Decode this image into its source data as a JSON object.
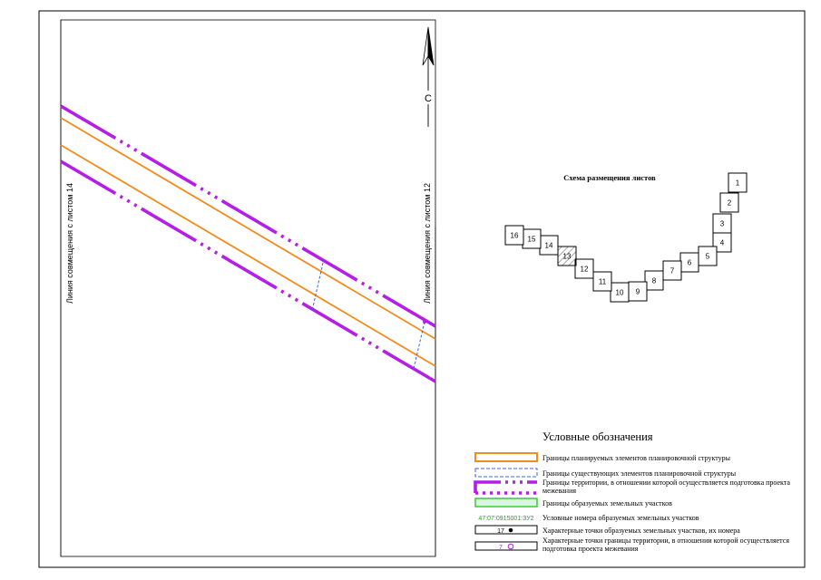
{
  "north_label": "С",
  "match_lines": {
    "left": "Линия совмещения с листом 14",
    "right": "Линия совмещения с листом 12"
  },
  "sheet_scheme": {
    "title": "Схема размещения листов",
    "sheets": [
      {
        "n": "1"
      },
      {
        "n": "2"
      },
      {
        "n": "3"
      },
      {
        "n": "4"
      },
      {
        "n": "5"
      },
      {
        "n": "6"
      },
      {
        "n": "7"
      },
      {
        "n": "8"
      },
      {
        "n": "9"
      },
      {
        "n": "10"
      },
      {
        "n": "11"
      },
      {
        "n": "12"
      },
      {
        "n": "13",
        "current": true
      },
      {
        "n": "14"
      },
      {
        "n": "15"
      },
      {
        "n": "16"
      }
    ]
  },
  "legend": {
    "title": "Условные обозначения",
    "items": [
      {
        "text": "Границы планируемых элементов планировочной структуры"
      },
      {
        "text": "Границы существующих элементов планировочной структуры"
      },
      {
        "text": "Границы территории, в отношении которой осуществляется подготовка проекта межевания"
      },
      {
        "text": "Границы образуемых земельных участков"
      },
      {
        "text": "Условные номера образуемых земельных участков",
        "sample": "47:07:0915001:ЗУ2"
      },
      {
        "text": "Характерные точки образуемых земельных участков, их номера",
        "sample": "17"
      },
      {
        "text": "Характерные точки границы территории, в отношении которой осуществляется подготовка проекта межевания",
        "sample": "7"
      }
    ]
  },
  "colors": {
    "planned_boundary": "#f28c1c",
    "existing_boundary": "#3c64d8",
    "territory_boundary": "#b41ee6",
    "parcel_boundary": "#3cc83c",
    "parcel_number": "#28a028",
    "sheet_hatch": "#7a7a7a"
  }
}
